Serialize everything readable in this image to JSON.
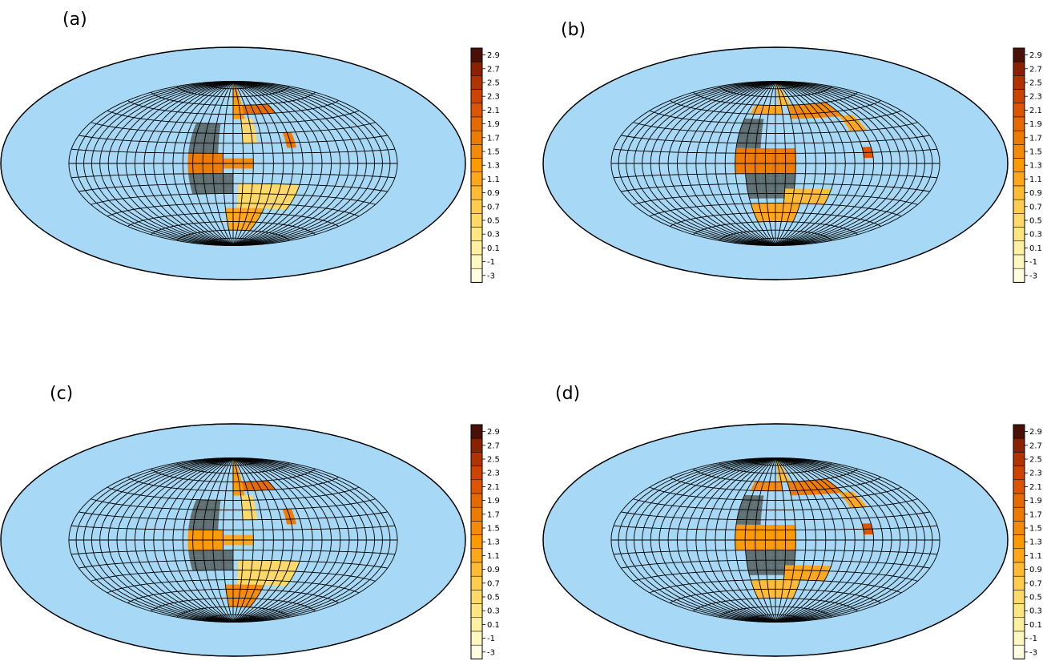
{
  "chart_data": [
    {
      "type": "heatmap",
      "projection": "hammer-aitoff",
      "panel_label": "(a)",
      "grid": true,
      "colorbar_ticks": [
        "2.9",
        "2.7",
        "2.5",
        "2.3",
        "2.1",
        "1.9",
        "1.7",
        "1.5",
        "1.3",
        "1.1",
        "0.9",
        "0.7",
        "0.5",
        "0.3",
        "0.1",
        "-1",
        "-3"
      ],
      "regions": [
        {
          "lon": [
            -45,
            -15
          ],
          "lat": [
            10,
            40
          ],
          "value": "nodata"
        },
        {
          "lon": [
            -45,
            0
          ],
          "lat": [
            -30,
            -10
          ],
          "value": "nodata"
        },
        {
          "lon": [
            -45,
            -10
          ],
          "lat": [
            -10,
            10
          ],
          "value": 1.7
        },
        {
          "lon": [
            -10,
            20
          ],
          "lat": [
            -5,
            5
          ],
          "value": 1.5
        },
        {
          "lon": [
            0,
            15
          ],
          "lat": [
            45,
            85
          ],
          "value": 1.3
        },
        {
          "lon": [
            15,
            60
          ],
          "lat": [
            50,
            60
          ],
          "value": 1.9
        },
        {
          "lon": [
            10,
            25
          ],
          "lat": [
            20,
            45
          ],
          "value": 0.5
        },
        {
          "lon": [
            5,
            70
          ],
          "lat": [
            -45,
            -20
          ],
          "value": 0.5
        },
        {
          "lon": [
            -10,
            40
          ],
          "lat": [
            -70,
            -45
          ],
          "value": 1.1
        },
        {
          "lon": [
            55,
            65
          ],
          "lat": [
            15,
            30
          ],
          "value": 1.7
        }
      ]
    },
    {
      "type": "heatmap",
      "projection": "hammer-aitoff",
      "panel_label": "(b)",
      "grid": true,
      "colorbar_ticks": [
        "2.9",
        "2.7",
        "2.5",
        "2.3",
        "2.1",
        "1.9",
        "1.7",
        "1.5",
        "1.3",
        "1.1",
        "0.9",
        "0.7",
        "0.5",
        "0.3",
        "0.1",
        "-1",
        "-3"
      ],
      "regions": [
        {
          "lon": [
            -40,
            -15
          ],
          "lat": [
            15,
            45
          ],
          "value": "nodata"
        },
        {
          "lon": [
            -30,
            20
          ],
          "lat": [
            -35,
            -10
          ],
          "value": "nodata"
        },
        {
          "lon": [
            -40,
            20
          ],
          "lat": [
            -10,
            15
          ],
          "value": 1.7
        },
        {
          "lon": [
            -35,
            10
          ],
          "lat": [
            50,
            60
          ],
          "value": 1.1
        },
        {
          "lon": [
            5,
            25
          ],
          "lat": [
            60,
            85
          ],
          "value": 0.9
        },
        {
          "lon": [
            20,
            90
          ],
          "lat": [
            45,
            60
          ],
          "value": 1.5
        },
        {
          "lon": [
            85,
            105
          ],
          "lat": [
            30,
            45
          ],
          "value": 1.1
        },
        {
          "lon": [
            90,
            100
          ],
          "lat": [
            5,
            15
          ],
          "value": 2.1
        },
        {
          "lon": [
            10,
            60
          ],
          "lat": [
            -40,
            -25
          ],
          "value": 0.9
        },
        {
          "lon": [
            -30,
            30
          ],
          "lat": [
            -60,
            -40
          ],
          "value": 1.1
        }
      ]
    },
    {
      "type": "heatmap",
      "projection": "hammer-aitoff",
      "panel_label": "(c)",
      "grid": true,
      "colorbar_ticks": [
        "2.9",
        "2.7",
        "2.5",
        "2.3",
        "2.1",
        "1.9",
        "1.7",
        "1.5",
        "1.3",
        "1.1",
        "0.9",
        "0.7",
        "0.5",
        "0.3",
        "0.1",
        "-1",
        "-3"
      ],
      "regions": [
        {
          "lon": [
            -45,
            -15
          ],
          "lat": [
            10,
            40
          ],
          "value": "nodata"
        },
        {
          "lon": [
            -45,
            0
          ],
          "lat": [
            -30,
            -10
          ],
          "value": "nodata"
        },
        {
          "lon": [
            -45,
            -10
          ],
          "lat": [
            -10,
            10
          ],
          "value": 1.3
        },
        {
          "lon": [
            -10,
            20
          ],
          "lat": [
            -5,
            5
          ],
          "value": 1.1
        },
        {
          "lon": [
            0,
            15
          ],
          "lat": [
            45,
            85
          ],
          "value": 1.3
        },
        {
          "lon": [
            15,
            60
          ],
          "lat": [
            50,
            60
          ],
          "value": 1.9
        },
        {
          "lon": [
            10,
            25
          ],
          "lat": [
            20,
            45
          ],
          "value": 0.5
        },
        {
          "lon": [
            5,
            70
          ],
          "lat": [
            -45,
            -20
          ],
          "value": 0.5
        },
        {
          "lon": [
            -10,
            40
          ],
          "lat": [
            -70,
            -45
          ],
          "value": 1.5
        },
        {
          "lon": [
            55,
            65
          ],
          "lat": [
            15,
            30
          ],
          "value": 1.7
        }
      ]
    },
    {
      "type": "heatmap",
      "projection": "hammer-aitoff",
      "panel_label": "(d)",
      "grid": true,
      "colorbar_ticks": [
        "2.9",
        "2.7",
        "2.5",
        "2.3",
        "2.1",
        "1.9",
        "1.7",
        "1.5",
        "1.3",
        "1.1",
        "0.9",
        "0.7",
        "0.5",
        "0.3",
        "0.1",
        "-1",
        "-3"
      ],
      "regions": [
        {
          "lon": [
            -40,
            -15
          ],
          "lat": [
            15,
            45
          ],
          "value": "nodata"
        },
        {
          "lon": [
            -30,
            20
          ],
          "lat": [
            -35,
            -10
          ],
          "value": "nodata"
        },
        {
          "lon": [
            -40,
            20
          ],
          "lat": [
            -10,
            15
          ],
          "value": 1.3
        },
        {
          "lon": [
            -35,
            10
          ],
          "lat": [
            50,
            60
          ],
          "value": 1.5
        },
        {
          "lon": [
            5,
            25
          ],
          "lat": [
            60,
            85
          ],
          "value": 0.9
        },
        {
          "lon": [
            20,
            90
          ],
          "lat": [
            45,
            60
          ],
          "value": 1.7
        },
        {
          "lon": [
            85,
            105
          ],
          "lat": [
            30,
            45
          ],
          "value": 1.1
        },
        {
          "lon": [
            90,
            100
          ],
          "lat": [
            5,
            15
          ],
          "value": 2.1
        },
        {
          "lon": [
            10,
            60
          ],
          "lat": [
            -40,
            -25
          ],
          "value": 1.1
        },
        {
          "lon": [
            -30,
            30
          ],
          "lat": [
            -60,
            -40
          ],
          "value": 0.9
        }
      ]
    }
  ],
  "colors": {
    "ocean": "#a7d8f5",
    "nodata": "#5f6f72",
    "grid": "#000000",
    "scale": [
      "#fffde0",
      "#fff7c0",
      "#ffefa0",
      "#ffe680",
      "#ffd966",
      "#ffcc4d",
      "#ffbb33",
      "#ffa61a",
      "#ff9900",
      "#f58a0a",
      "#ee7a00",
      "#e66a00",
      "#dd5500",
      "#cc4400",
      "#b33300",
      "#8a2200",
      "#4a1005"
    ]
  }
}
